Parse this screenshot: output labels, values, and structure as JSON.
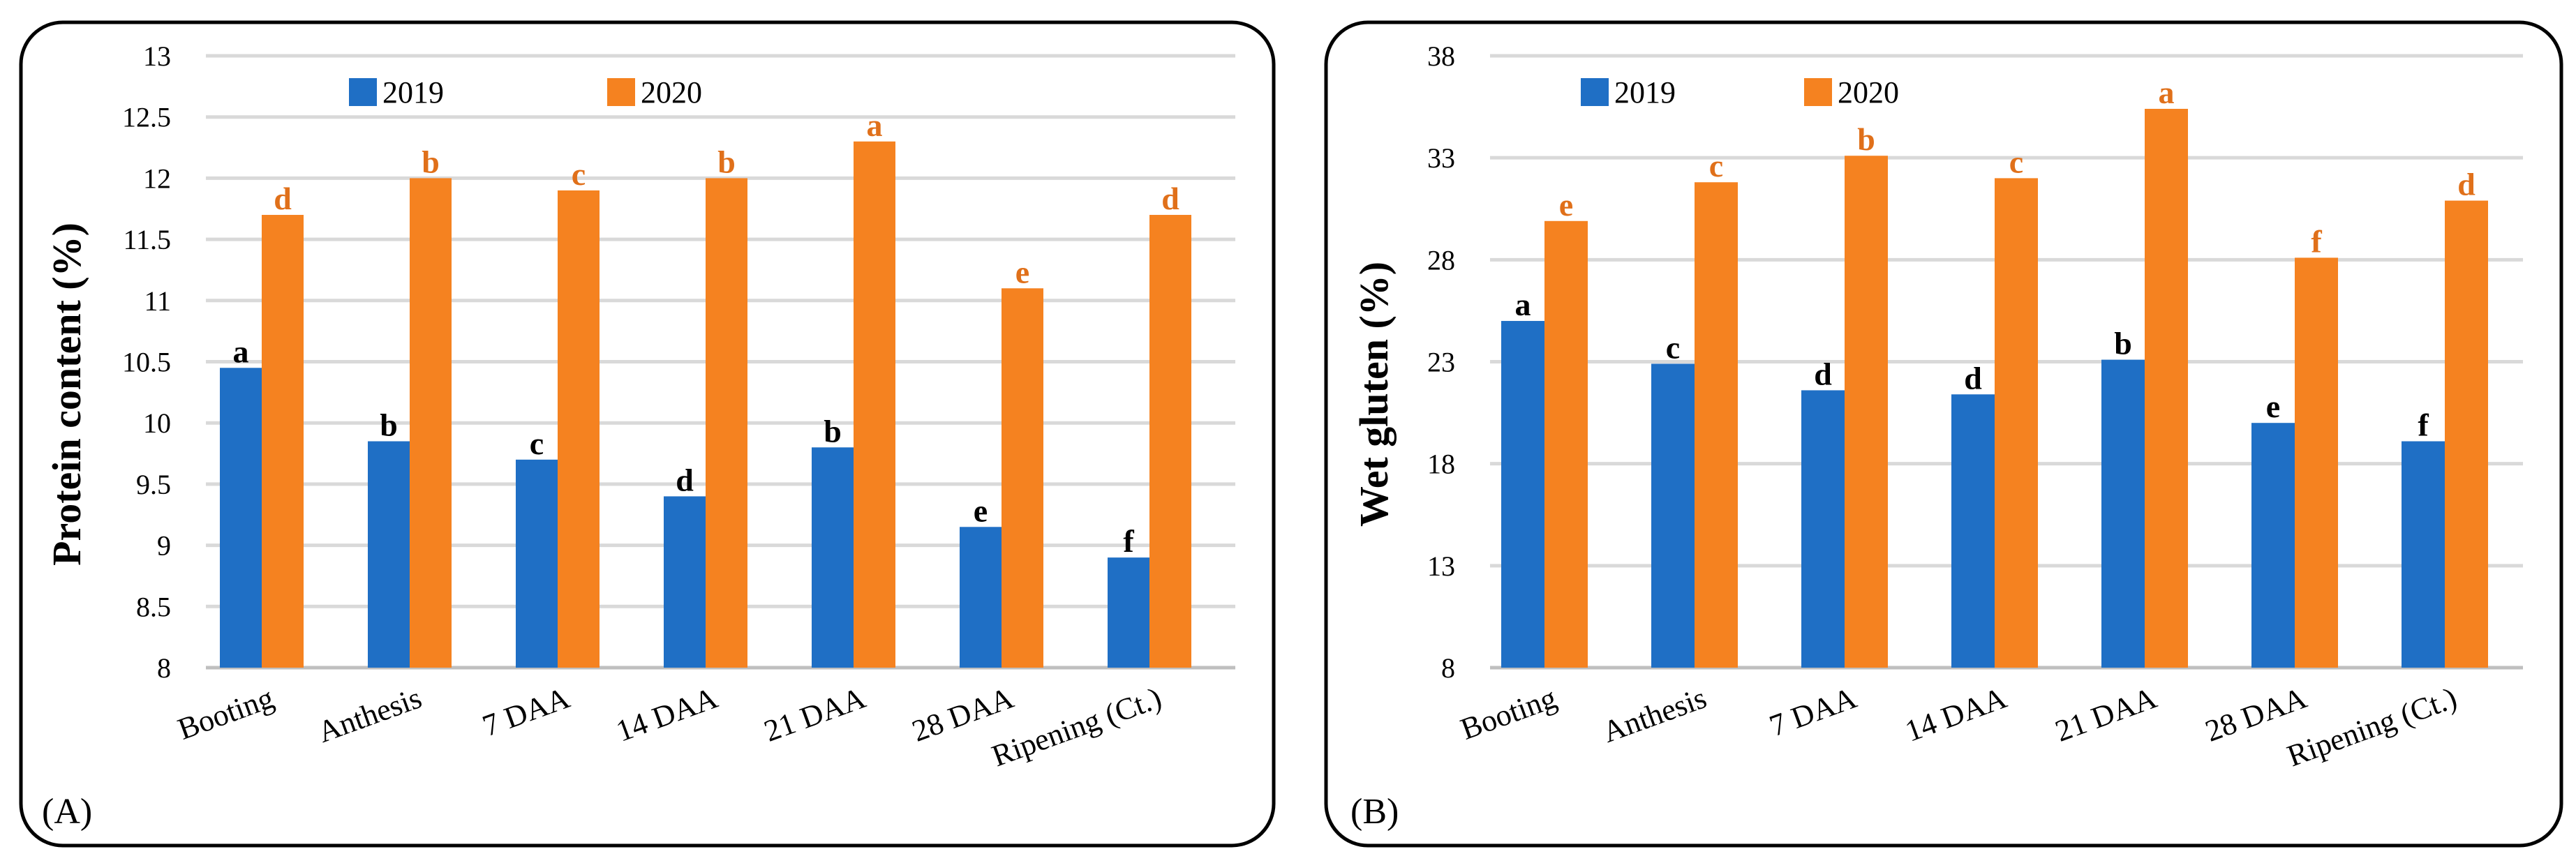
{
  "chart_data": [
    {
      "type": "bar",
      "panel_label": "(A)",
      "ylabel": "Protein content (%)",
      "xlabel": "",
      "ylim": [
        8,
        13
      ],
      "yticks": [
        "8",
        "8.5",
        "9",
        "9.5",
        "10",
        "10.5",
        "11",
        "11.5",
        "12",
        "12.5",
        "13"
      ],
      "grid": true,
      "legend": "top-left",
      "categories": [
        "Booting",
        "Anthesis",
        "7 DAA",
        "14 DAA",
        "21 DAA",
        "28 DAA",
        "Ripening (Ct.)"
      ],
      "series": [
        {
          "name": "2019",
          "color": "#1f6fc5",
          "values": [
            10.45,
            9.85,
            9.7,
            9.4,
            9.8,
            9.15,
            8.9
          ],
          "letters": [
            "a",
            "b",
            "c",
            "d",
            "b",
            "e",
            "f"
          ],
          "letter_color": "#000000"
        },
        {
          "name": "2020",
          "color": "#f58220",
          "values": [
            11.7,
            12.0,
            11.9,
            12.0,
            12.3,
            11.1,
            11.7
          ],
          "letters": [
            "d",
            "b",
            "c",
            "b",
            "a",
            "e",
            "d"
          ],
          "letter_color": "#e0701a"
        }
      ]
    },
    {
      "type": "bar",
      "panel_label": "(B)",
      "ylabel": "Wet gluten (%)",
      "xlabel": "",
      "ylim": [
        8,
        38
      ],
      "yticks": [
        "8",
        "13",
        "18",
        "23",
        "28",
        "33",
        "38"
      ],
      "grid": true,
      "legend": "top-left",
      "categories": [
        "Booting",
        "Anthesis",
        "7 DAA",
        "14 DAA",
        "21 DAA",
        "28 DAA",
        "Ripening (Ct.)"
      ],
      "series": [
        {
          "name": "2019",
          "color": "#1f6fc5",
          "values": [
            25.0,
            22.9,
            21.6,
            21.4,
            23.1,
            20.0,
            19.1
          ],
          "letters": [
            "a",
            "c",
            "d",
            "d",
            "b",
            "e",
            "f"
          ],
          "letter_color": "#000000"
        },
        {
          "name": "2020",
          "color": "#f58220",
          "values": [
            29.9,
            31.8,
            33.1,
            32.0,
            35.4,
            28.1,
            30.9
          ],
          "letters": [
            "e",
            "c",
            "b",
            "c",
            "a",
            "f",
            "d"
          ],
          "letter_color": "#e0701a"
        }
      ]
    }
  ]
}
